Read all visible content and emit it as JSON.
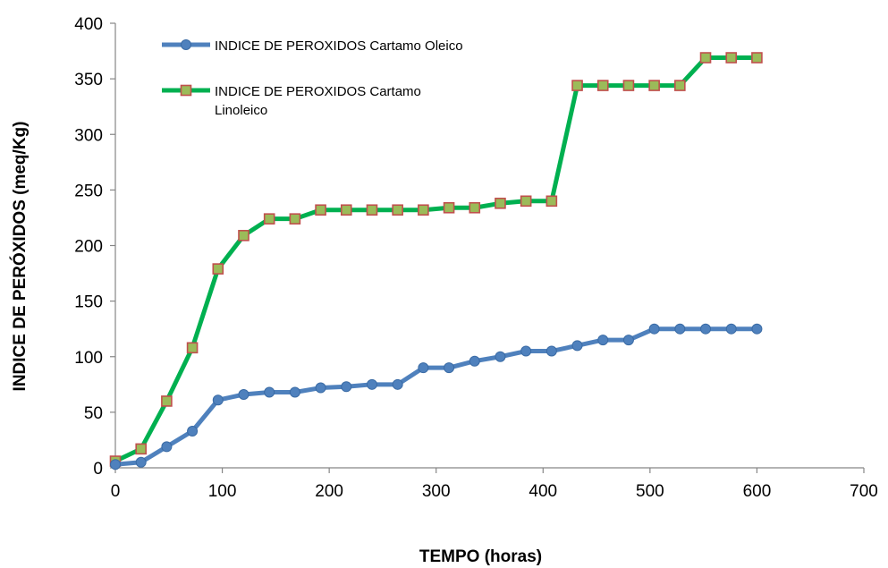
{
  "chart_data": {
    "type": "line",
    "xlabel": "TEMPO (horas)",
    "ylabel": "INDICE DE PERÓXIDOS (meq/Kg)",
    "xlim": [
      0,
      700
    ],
    "ylim": [
      0,
      400
    ],
    "xticks": [
      0,
      100,
      200,
      300,
      400,
      500,
      600,
      700
    ],
    "yticks": [
      0,
      50,
      100,
      150,
      200,
      250,
      300,
      350,
      400
    ],
    "grid": false,
    "legend_position": "top-left",
    "series": [
      {
        "name": "INDICE DE PEROXIDOS Cartamo Oleico",
        "name_lines": [
          "INDICE DE PEROXIDOS Cartamo Oleico"
        ],
        "color": "#4F81BD",
        "marker": "circle",
        "x": [
          0,
          24,
          48,
          72,
          96,
          120,
          144,
          168,
          192,
          216,
          240,
          264,
          288,
          312,
          336,
          360,
          384,
          408,
          432,
          456,
          480,
          504,
          528,
          552,
          576,
          600
        ],
        "y": [
          3,
          5,
          19,
          33,
          61,
          66,
          68,
          68,
          72,
          73,
          75,
          75,
          90,
          90,
          96,
          100,
          105,
          105,
          110,
          115,
          115,
          125,
          125,
          125,
          125,
          125
        ]
      },
      {
        "name": "INDICE DE PEROXIDOS Cartamo Linoleico",
        "name_lines": [
          "INDICE DE PEROXIDOS Cartamo",
          "Linoleico"
        ],
        "color": "#00B050",
        "marker_fill": "#9BBB59",
        "marker_stroke": "#C0504D",
        "marker": "square",
        "x": [
          0,
          24,
          48,
          72,
          96,
          120,
          144,
          168,
          192,
          216,
          240,
          264,
          288,
          312,
          336,
          360,
          384,
          408,
          432,
          456,
          480,
          504,
          528,
          552,
          576,
          600
        ],
        "y": [
          6,
          17,
          60,
          108,
          179,
          209,
          224,
          224,
          232,
          232,
          232,
          232,
          232,
          234,
          234,
          238,
          240,
          240,
          344,
          344,
          344,
          344,
          344,
          369,
          369,
          369
        ]
      }
    ]
  }
}
